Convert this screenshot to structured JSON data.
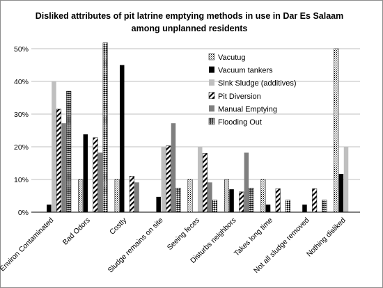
{
  "chart_data": {
    "type": "bar",
    "title": "Disliked  attributes of pit latrine emptying methods in use in Dar Es Salaam",
    "subtitle": "among  unplanned residents",
    "xlabel": "",
    "ylabel": "",
    "ylim": [
      0,
      55
    ],
    "ytick_labels": [
      "0%",
      "10%",
      "20%",
      "30%",
      "40%",
      "50%"
    ],
    "grid": true,
    "legend_position": "right-center",
    "categories": [
      "Environ Contaminated",
      "Bad Odors",
      "Costly",
      "Sludge remains on site",
      "Seeing feces",
      "Disturbs neighbors",
      "Takes long time",
      "Not all sludge removed",
      "Nothing disliked"
    ],
    "series": [
      {
        "name": "Vacutug",
        "pattern": "dots",
        "values": [
          0,
          10,
          10,
          0,
          10,
          10,
          10,
          0,
          50
        ]
      },
      {
        "name": "Vacuum tankers",
        "pattern": "solid-black",
        "values": [
          2.3,
          23.8,
          45,
          4.7,
          0,
          7,
          2.3,
          2.3,
          11.7
        ]
      },
      {
        "name": "Sink Sludge (additives)",
        "pattern": "solid-lightgray",
        "values": [
          40,
          0,
          0,
          20,
          20,
          0,
          0,
          0,
          20
        ]
      },
      {
        "name": "Pit Diversion",
        "pattern": "diagonal",
        "values": [
          31.5,
          22.8,
          11,
          20.3,
          18,
          6.2,
          7.2,
          7.2,
          0
        ]
      },
      {
        "name": "Manual Emptying",
        "pattern": "solid-darkgray",
        "values": [
          27.2,
          18.2,
          9.1,
          27.2,
          9.1,
          18.2,
          0,
          0,
          0
        ]
      },
      {
        "name": "Flooding Out",
        "pattern": "checker",
        "values": [
          37,
          51.8,
          0,
          7.4,
          3.7,
          7.4,
          3.7,
          3.7,
          0
        ]
      }
    ],
    "colors": {
      "solid_black": "#000000",
      "light_gray": "#bfbfbf",
      "dark_gray": "#7f7f7f",
      "gridline": "#bfbfbf",
      "pattern_stroke": "#000000"
    }
  }
}
